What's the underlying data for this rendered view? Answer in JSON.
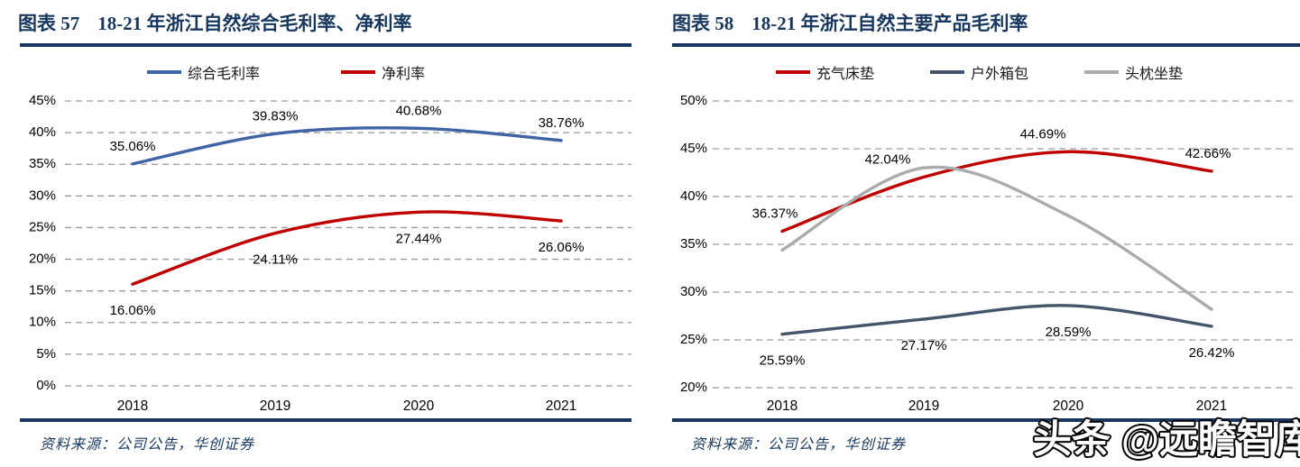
{
  "page": {
    "background": "#ffffff",
    "accent_navy": "#17375E",
    "grid_color": "#9A9A9A",
    "source_note": "资料来源：公司公告，华创证券",
    "watermark": {
      "text": "头条 @远瞻智库",
      "fill": "#ffffff",
      "outline": "#000000"
    }
  },
  "chart_data": [
    {
      "id": "chart57",
      "type": "line",
      "figure_label": "图表 57",
      "title": "18-21 年浙江自然综合毛利率、净利率",
      "categories": [
        "2018",
        "2019",
        "2020",
        "2021"
      ],
      "ylim": [
        0,
        45
      ],
      "ystep": 5,
      "ytick_labels": [
        "0%",
        "5%",
        "10%",
        "15%",
        "20%",
        "25%",
        "30%",
        "35%",
        "40%",
        "45%"
      ],
      "grid": "horizontal-dashed",
      "legend_position": "top",
      "series": [
        {
          "name": "综合毛利率",
          "color": "#3E64A6",
          "values": [
            35.06,
            39.83,
            40.68,
            38.76
          ],
          "data_labels": [
            "35.06%",
            "39.83%",
            "40.68%",
            "38.76%"
          ],
          "label_side": "above"
        },
        {
          "name": "净利率",
          "color": "#C00000",
          "values": [
            16.06,
            24.11,
            27.44,
            26.06
          ],
          "data_labels": [
            "16.06%",
            "24.11%",
            "27.44%",
            "26.06%"
          ],
          "label_side": "below"
        }
      ]
    },
    {
      "id": "chart58",
      "type": "line",
      "figure_label": "图表 58",
      "title": "18-21 年浙江自然主要产品毛利率",
      "categories": [
        "2018",
        "2019",
        "2020",
        "2021"
      ],
      "ylim": [
        20,
        50
      ],
      "ystep": 5,
      "ytick_labels": [
        "20%",
        "25%",
        "30%",
        "35%",
        "40%",
        "45%",
        "50%"
      ],
      "grid": "horizontal-dashed",
      "legend_position": "top",
      "series": [
        {
          "name": "充气床垫",
          "color": "#C00000",
          "values": [
            36.37,
            42.04,
            44.69,
            42.66
          ],
          "data_labels": [
            "36.37%",
            "42.04%",
            "44.69%",
            "42.66%"
          ],
          "label_side": "above",
          "label_dx": [
            -8,
            -40,
            -28,
            -4
          ]
        },
        {
          "name": "户外箱包",
          "color": "#44546A",
          "values": [
            25.59,
            27.17,
            28.59,
            26.42
          ],
          "data_labels": [
            "25.59%",
            "27.17%",
            "28.59%",
            "26.42%"
          ],
          "label_side": "below"
        },
        {
          "name": "头枕坐垫",
          "color": "#ABABAB",
          "values": [
            34.4,
            43.0,
            38.0,
            28.2
          ],
          "values_estimated": true,
          "data_labels": null,
          "label_side": "above"
        }
      ]
    }
  ]
}
